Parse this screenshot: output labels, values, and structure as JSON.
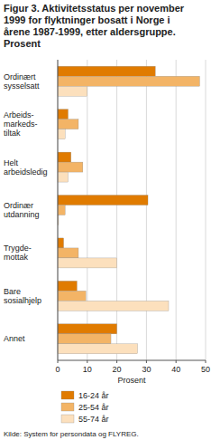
{
  "chart_data": {
    "type": "bar",
    "orientation": "horizontal",
    "title": "Figur 3. Aktivitetsstatus per november\n1999 for flyktninger bosatt i Norge i\nårene 1987-1999, etter aldersgruppe.\nProsent",
    "xlabel": "Prosent",
    "source": "Kilde: System for persondata og FLYREG.",
    "categories": [
      "Ordinært\nsysselsatt",
      "Arbeids-\nmarkeds-\ntiltak",
      "Helt\narbeidsledig",
      "Ordinær\nutdanning",
      "Trygde-\nmottak",
      "Bare\nsosialhjelp",
      "Annet"
    ],
    "series": [
      {
        "name": "16-24 år",
        "color": "#e07b00",
        "values": [
          33,
          3.5,
          4.5,
          30.5,
          2,
          6.5,
          20
        ]
      },
      {
        "name": "25-54 år",
        "color": "#f3b466",
        "values": [
          48,
          7,
          8.5,
          2.5,
          7,
          9.5,
          18
        ]
      },
      {
        "name": "55-74 år",
        "color": "#fce0bd",
        "values": [
          10,
          2.5,
          3.5,
          0.3,
          20,
          37.5,
          27
        ]
      }
    ],
    "xlim": [
      0,
      50
    ],
    "xticks": [
      0,
      10,
      20,
      30,
      40,
      50
    ],
    "grid": true,
    "legend": "bottom"
  }
}
